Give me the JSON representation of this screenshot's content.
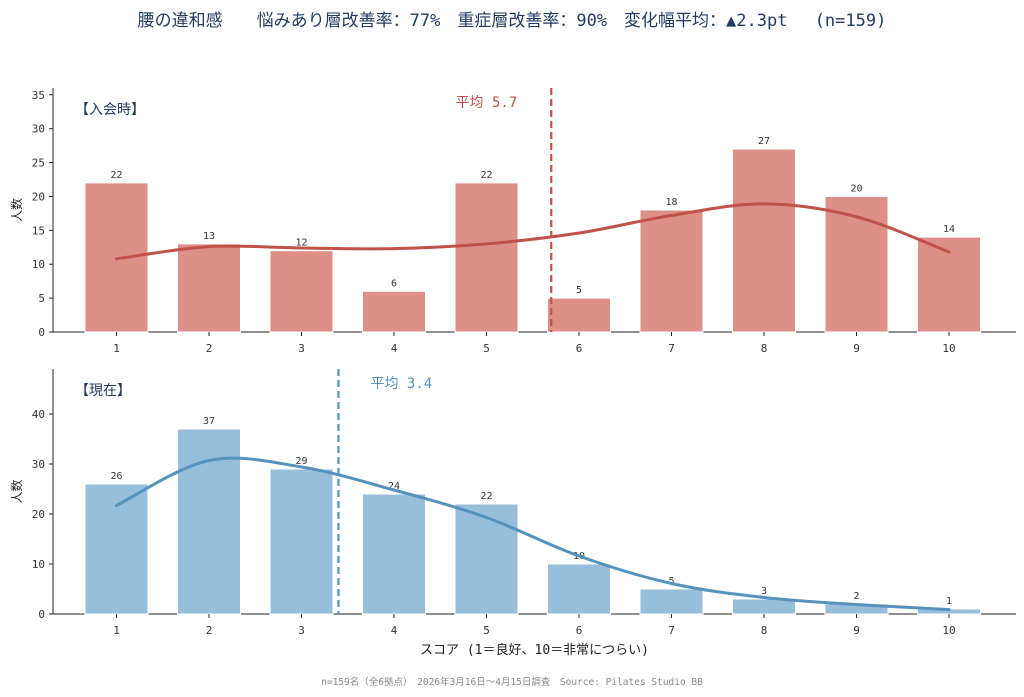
{
  "title": "腰の違和感　　悩みあり層改善率：77%　重症層改善率：90%　変化幅平均：▲2.3pt　 (n=159)",
  "footer": "n=159名（全6拠点）　2026年3月16日〜4月15日調査　Source: Pilates Studio BB",
  "colors": {
    "before": "#dd8f88",
    "before_line": "#c0524a",
    "after": "#97bedb",
    "after_line": "#5592bc",
    "title": "#1f3a5f"
  },
  "chart_data": [
    {
      "type": "bar",
      "panel_label": "【入会時】",
      "categories": [
        "1",
        "2",
        "3",
        "4",
        "5",
        "6",
        "7",
        "8",
        "9",
        "10"
      ],
      "values": [
        22,
        13,
        12,
        6,
        22,
        5,
        18,
        27,
        20,
        14
      ],
      "smooth_curve": [
        10.8,
        12.6,
        12.4,
        12.3,
        13.0,
        14.6,
        17.2,
        18.9,
        17.0,
        11.8
      ],
      "mean": 5.7,
      "mean_label": "平均 5.7",
      "ylabel": "人数",
      "ylim": [
        0,
        36
      ],
      "yticks": [
        0,
        5,
        10,
        15,
        20,
        25,
        30,
        35
      ],
      "grid": false
    },
    {
      "type": "bar",
      "panel_label": "【現在】",
      "categories": [
        "1",
        "2",
        "3",
        "4",
        "5",
        "6",
        "7",
        "8",
        "9",
        "10"
      ],
      "values": [
        26,
        37,
        29,
        24,
        22,
        10,
        5,
        3,
        2,
        1
      ],
      "smooth_curve": [
        21.7,
        30.7,
        29.4,
        24.8,
        19.3,
        11.6,
        6.1,
        3.3,
        1.9,
        0.9
      ],
      "mean": 3.4,
      "mean_label": "平均 3.4",
      "ylabel": "人数",
      "xlabel": "スコア (1＝良好、10＝非常につらい)",
      "ylim": [
        0,
        49
      ],
      "yticks": [
        0,
        10,
        20,
        30,
        40
      ],
      "grid": false
    }
  ]
}
